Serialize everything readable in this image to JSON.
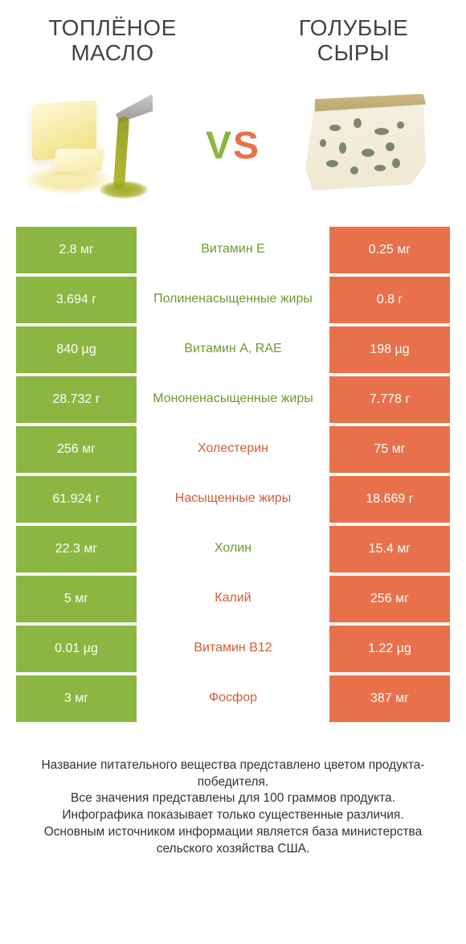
{
  "header": {
    "left_title": "ТОПЛЁНОЕ МАСЛО",
    "right_title": "ГОЛУБЫЕ СЫРЫ",
    "vs_v": "V",
    "vs_s": "S"
  },
  "colors": {
    "green": "#8bb641",
    "orange": "#e8714b",
    "green_text": "#6f9a2e",
    "orange_text": "#d35b36",
    "background": "#ffffff"
  },
  "rows": [
    {
      "left": "2.8 мг",
      "label": "Витамин E",
      "right": "0.25 мг",
      "winner": "left"
    },
    {
      "left": "3.694 г",
      "label": "Полиненасыщенные жиры",
      "right": "0.8 г",
      "winner": "left"
    },
    {
      "left": "840 µg",
      "label": "Витамин A, RAE",
      "right": "198 µg",
      "winner": "left"
    },
    {
      "left": "28.732 г",
      "label": "Мононенасыщенные жиры",
      "right": "7.778 г",
      "winner": "left"
    },
    {
      "left": "256 мг",
      "label": "Холестерин",
      "right": "75 мг",
      "winner": "right"
    },
    {
      "left": "61.924 г",
      "label": "Насыщенные жиры",
      "right": "18.669 г",
      "winner": "right"
    },
    {
      "left": "22.3 мг",
      "label": "Холин",
      "right": "15.4 мг",
      "winner": "left"
    },
    {
      "left": "5 мг",
      "label": "Калий",
      "right": "256 мг",
      "winner": "right"
    },
    {
      "left": "0.01 µg",
      "label": "Витамин B12",
      "right": "1.22 µg",
      "winner": "right"
    },
    {
      "left": "3 мг",
      "label": "Фосфор",
      "right": "387 мг",
      "winner": "right"
    }
  ],
  "footer": {
    "line1": "Название питательного вещества представлено цветом продукта-победителя.",
    "line2": "Все значения представлены для 100 граммов продукта.",
    "line3": "Инфографика показывает только существенные различия.",
    "line4": "Основным источником информации является база министерства сельского хозяйства США."
  },
  "cheese_veins": [
    {
      "l": 40,
      "t": 48,
      "w": 14,
      "h": 8
    },
    {
      "l": 70,
      "t": 40,
      "w": 10,
      "h": 12
    },
    {
      "l": 96,
      "t": 52,
      "w": 18,
      "h": 9
    },
    {
      "l": 52,
      "t": 70,
      "w": 9,
      "h": 14
    },
    {
      "l": 80,
      "t": 78,
      "w": 16,
      "h": 10
    },
    {
      "l": 110,
      "t": 70,
      "w": 11,
      "h": 11
    },
    {
      "l": 36,
      "t": 92,
      "w": 15,
      "h": 9
    },
    {
      "l": 66,
      "t": 100,
      "w": 10,
      "h": 10
    },
    {
      "l": 96,
      "t": 98,
      "w": 14,
      "h": 8
    },
    {
      "l": 124,
      "t": 44,
      "w": 9,
      "h": 9
    },
    {
      "l": 28,
      "t": 66,
      "w": 8,
      "h": 10
    },
    {
      "l": 118,
      "t": 90,
      "w": 10,
      "h": 12
    }
  ]
}
